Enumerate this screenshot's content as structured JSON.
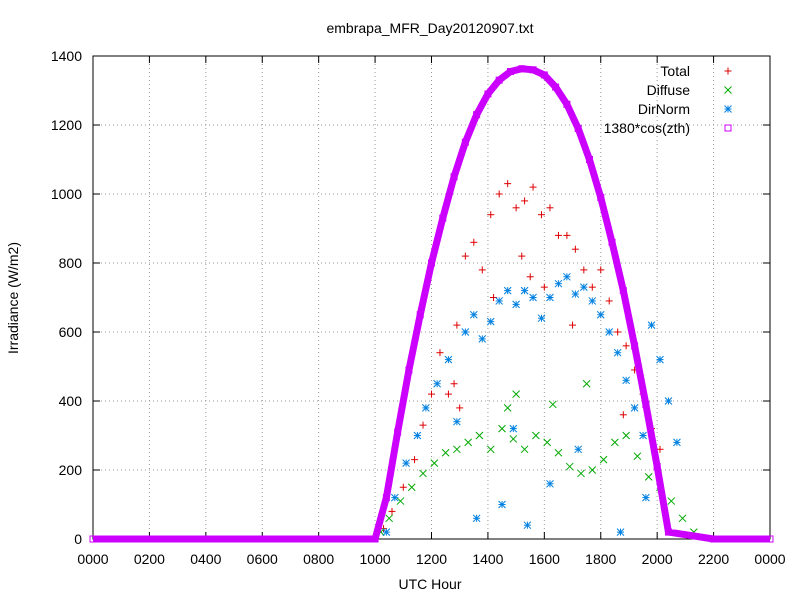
{
  "chart_data": {
    "type": "scatter",
    "title": "embrapa_MFR_Day20120907.txt",
    "xlabel": "UTC Hour",
    "ylabel": "Irradiance (W/m2)",
    "xlim": [
      0,
      24
    ],
    "ylim": [
      0,
      1400
    ],
    "x_tick_labels": [
      "0000",
      "0200",
      "0400",
      "0600",
      "0800",
      "1000",
      "1200",
      "1400",
      "1600",
      "1800",
      "2000",
      "2200",
      "0000"
    ],
    "y_tick_labels": [
      "0",
      "200",
      "400",
      "600",
      "800",
      "1000",
      "1200",
      "1400"
    ],
    "grid": true,
    "legend_position": "top-right",
    "series": [
      {
        "name": "Total",
        "marker": "plus",
        "color": "#dd0000",
        "points": [
          [
            10.3,
            30
          ],
          [
            10.6,
            80
          ],
          [
            11.0,
            150
          ],
          [
            11.4,
            230
          ],
          [
            11.7,
            330
          ],
          [
            12.0,
            420
          ],
          [
            12.3,
            540
          ],
          [
            12.6,
            420
          ],
          [
            12.9,
            620
          ],
          [
            13.2,
            820
          ],
          [
            13.5,
            860
          ],
          [
            13.8,
            780
          ],
          [
            14.1,
            940
          ],
          [
            14.4,
            1000
          ],
          [
            14.7,
            1030
          ],
          [
            15.0,
            960
          ],
          [
            15.3,
            980
          ],
          [
            15.6,
            1020
          ],
          [
            15.9,
            940
          ],
          [
            16.2,
            960
          ],
          [
            16.5,
            880
          ],
          [
            16.8,
            880
          ],
          [
            17.1,
            840
          ],
          [
            17.4,
            780
          ],
          [
            17.7,
            730
          ],
          [
            18.0,
            780
          ],
          [
            18.3,
            690
          ],
          [
            18.6,
            600
          ],
          [
            18.9,
            560
          ],
          [
            19.2,
            490
          ],
          [
            19.5,
            420
          ],
          [
            19.8,
            320
          ],
          [
            20.1,
            260
          ],
          [
            14.2,
            700
          ],
          [
            15.5,
            760
          ],
          [
            13.0,
            380
          ],
          [
            16.0,
            730
          ],
          [
            17.0,
            620
          ],
          [
            12.8,
            450
          ],
          [
            15.2,
            820
          ],
          [
            18.8,
            360
          ]
        ]
      },
      {
        "name": "Diffuse",
        "marker": "cross",
        "color": "#00aa00",
        "points": [
          [
            10.2,
            20
          ],
          [
            10.5,
            60
          ],
          [
            10.9,
            110
          ],
          [
            11.3,
            150
          ],
          [
            11.7,
            190
          ],
          [
            12.1,
            220
          ],
          [
            12.5,
            250
          ],
          [
            12.9,
            260
          ],
          [
            13.3,
            280
          ],
          [
            13.7,
            300
          ],
          [
            14.1,
            260
          ],
          [
            14.5,
            320
          ],
          [
            14.9,
            290
          ],
          [
            15.3,
            260
          ],
          [
            15.7,
            300
          ],
          [
            16.1,
            280
          ],
          [
            16.5,
            250
          ],
          [
            16.9,
            210
          ],
          [
            17.3,
            190
          ],
          [
            17.7,
            200
          ],
          [
            18.1,
            230
          ],
          [
            18.5,
            280
          ],
          [
            18.9,
            300
          ],
          [
            19.3,
            240
          ],
          [
            19.7,
            180
          ],
          [
            20.1,
            150
          ],
          [
            20.5,
            110
          ],
          [
            20.9,
            60
          ],
          [
            21.3,
            20
          ],
          [
            15.0,
            420
          ],
          [
            16.3,
            390
          ],
          [
            14.7,
            380
          ],
          [
            17.5,
            450
          ]
        ]
      },
      {
        "name": "DirNorm",
        "marker": "star",
        "color": "#0080e0",
        "points": [
          [
            10.4,
            20
          ],
          [
            10.7,
            120
          ],
          [
            11.1,
            220
          ],
          [
            11.5,
            300
          ],
          [
            11.8,
            380
          ],
          [
            12.2,
            450
          ],
          [
            12.6,
            520
          ],
          [
            12.9,
            340
          ],
          [
            13.2,
            600
          ],
          [
            13.5,
            650
          ],
          [
            13.8,
            580
          ],
          [
            14.1,
            630
          ],
          [
            14.4,
            690
          ],
          [
            14.7,
            720
          ],
          [
            15.0,
            680
          ],
          [
            15.3,
            720
          ],
          [
            15.6,
            700
          ],
          [
            15.9,
            640
          ],
          [
            16.2,
            700
          ],
          [
            16.5,
            740
          ],
          [
            16.8,
            760
          ],
          [
            17.1,
            710
          ],
          [
            17.4,
            730
          ],
          [
            17.7,
            690
          ],
          [
            18.0,
            650
          ],
          [
            18.3,
            600
          ],
          [
            18.6,
            540
          ],
          [
            18.9,
            460
          ],
          [
            19.2,
            380
          ],
          [
            19.5,
            300
          ],
          [
            19.8,
            620
          ],
          [
            20.1,
            520
          ],
          [
            20.4,
            400
          ],
          [
            20.7,
            280
          ],
          [
            14.5,
            100
          ],
          [
            15.4,
            40
          ],
          [
            16.2,
            160
          ],
          [
            18.7,
            20
          ],
          [
            19.6,
            120
          ],
          [
            13.6,
            60
          ],
          [
            17.2,
            260
          ],
          [
            14.9,
            320
          ]
        ]
      },
      {
        "name": "1380*cos(zth)",
        "marker": "square",
        "color": "#cc00ff",
        "points": [
          [
            0,
            0
          ],
          [
            10.0,
            0
          ],
          [
            10.4,
            120
          ],
          [
            10.8,
            310
          ],
          [
            11.2,
            490
          ],
          [
            11.6,
            650
          ],
          [
            12.0,
            800
          ],
          [
            12.4,
            930
          ],
          [
            12.8,
            1050
          ],
          [
            13.2,
            1150
          ],
          [
            13.6,
            1230
          ],
          [
            14.0,
            1290
          ],
          [
            14.4,
            1330
          ],
          [
            14.8,
            1355
          ],
          [
            15.2,
            1363
          ],
          [
            15.6,
            1360
          ],
          [
            16.0,
            1345
          ],
          [
            16.4,
            1310
          ],
          [
            16.8,
            1260
          ],
          [
            17.2,
            1190
          ],
          [
            17.6,
            1100
          ],
          [
            18.0,
            990
          ],
          [
            18.4,
            860
          ],
          [
            18.8,
            720
          ],
          [
            19.2,
            560
          ],
          [
            19.6,
            390
          ],
          [
            20.0,
            210
          ],
          [
            20.4,
            20
          ],
          [
            22.0,
            0
          ],
          [
            24,
            0
          ]
        ]
      }
    ]
  }
}
